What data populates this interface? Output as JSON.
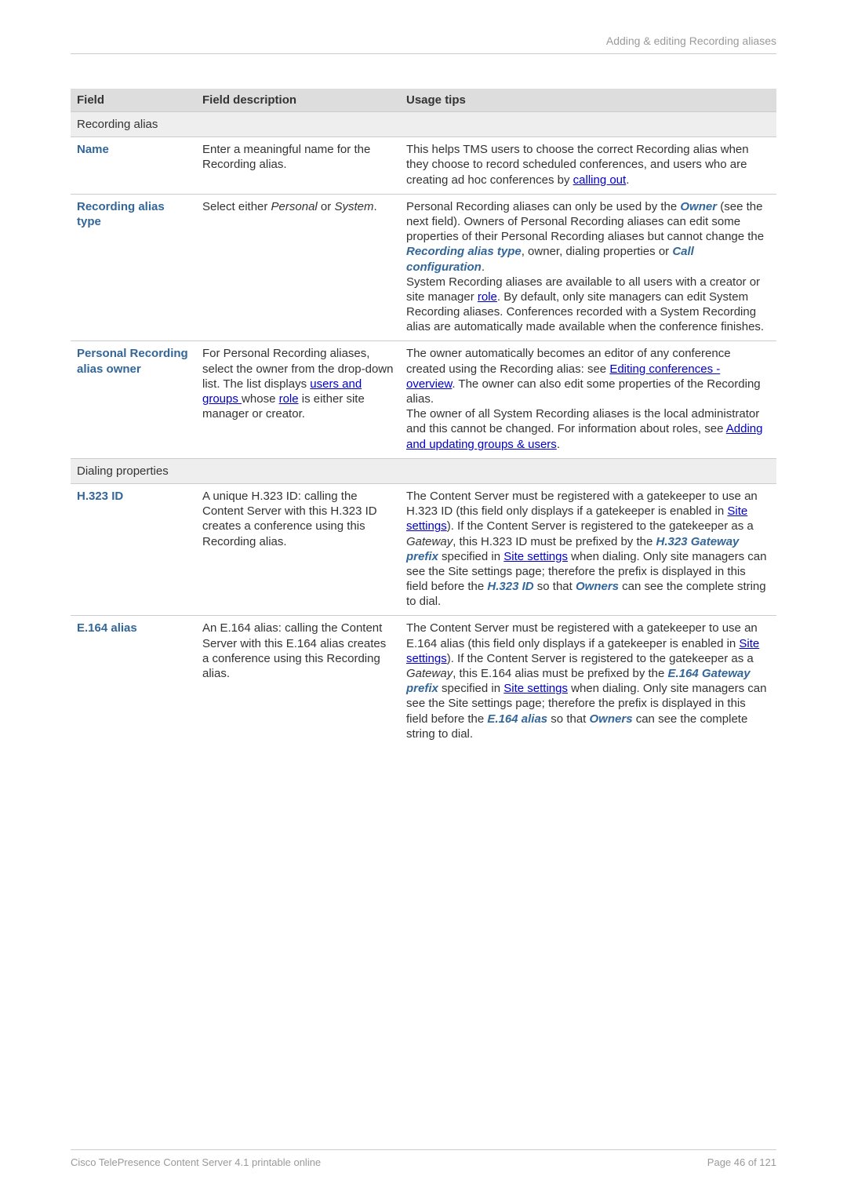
{
  "header": {
    "breadcrumb": "Adding & editing Recording aliases"
  },
  "footer": {
    "left": "Cisco TelePresence Content Server 4.1 printable online",
    "right": "Page 46 of 121"
  },
  "table": {
    "headers": {
      "field": "Field",
      "desc": "Field description",
      "tips": "Usage tips"
    },
    "section1": "Recording alias",
    "section2": "Dialing properties",
    "name": {
      "field": "Name",
      "desc": "Enter a meaningful name for the Recording alias.",
      "tips_a": "This helps TMS users to choose the correct Recording alias when they choose to record scheduled conferences, and users who are creating ad hoc conferences by ",
      "tips_link": "calling out",
      "tips_b": "."
    },
    "type": {
      "field": "Recording alias type",
      "desc_a": "Select either ",
      "desc_personal": "Personal",
      "desc_or": " or ",
      "desc_system": "System",
      "desc_b": ".",
      "t1": "Personal Recording aliases can only be used by the ",
      "owner": "Owner",
      "t2": " (see the next field). Owners of Personal Recording aliases can edit some properties of their Personal Recording aliases but cannot change the ",
      "rat": "Recording alias type",
      "t3": ", owner, dialing properties or ",
      "callcfg": "Call configuration",
      "t4": ".",
      "t5": "System Recording aliases are available to all users with a creator or site manager ",
      "role": "role",
      "t6": ". By default, only site managers can edit System Recording aliases. Conferences recorded with a System Recording alias are automatically made available when the conference finishes."
    },
    "owner": {
      "field": "Personal Recording alias owner",
      "d1": "For Personal Recording aliases, select the owner from the drop-down list. The list displays ",
      "ug": "users and groups ",
      "d2": "whose ",
      "role": "role",
      "d3": " is either site manager or creator.",
      "t1": "The owner automatically becomes an editor of any conference created using the Recording alias: see ",
      "link1": "Editing conferences - overview",
      "t2": ". The owner can also edit some properties of the Recording alias.",
      "t3": "The owner of all System Recording aliases is the local administrator and this cannot be changed. For information about roles, see ",
      "link2": "Adding and updating groups & users",
      "t4": "."
    },
    "h323": {
      "field": "H.323 ID",
      "desc": "A unique H.323 ID: calling the Content Server with this H.323 ID creates a conference using this Recording alias.",
      "t1": "The Content Server must be registered with a gatekeeper to use an H.323 ID (this field only displays if a gatekeeper is enabled in ",
      "ss1": "Site settings",
      "t2": "). If the Content Server is registered to the gatekeeper as a ",
      "gw": "Gateway",
      "t3": ", this H.323 ID must be prefixed by the ",
      "gwpre": "H.323 Gateway prefix",
      "t4": " specified in ",
      "ss2": "Site settings",
      "t5": " when dialing. Only site managers can see the Site settings page; therefore the prefix is displayed in this field before the ",
      "hid": "H.323 ID",
      "t6": " so that ",
      "own": "Owners",
      "t7": " can see the complete string to dial."
    },
    "e164": {
      "field": "E.164 alias",
      "desc": "An E.164 alias: calling the Content Server with this E.164 alias creates a conference using this Recording alias.",
      "t1": "The Content Server must be registered with a gatekeeper to use an E.164 alias (this field only displays if a gatekeeper is enabled in ",
      "ss1": "Site settings",
      "t2": "). If the Content Server is registered to the gatekeeper as a ",
      "gw": "Gateway",
      "t3": ", this E.164 alias must be prefixed by the ",
      "gwpre": "E.164 Gateway prefix",
      "t4": " specified in ",
      "ss2": "Site settings",
      "t5": " when dialing. Only site managers can see the Site settings page; therefore the prefix is displayed in this field before the ",
      "eid": "E.164 alias",
      "t6": " so that ",
      "own": "Owners",
      "t7": " can see the complete string to dial."
    }
  }
}
